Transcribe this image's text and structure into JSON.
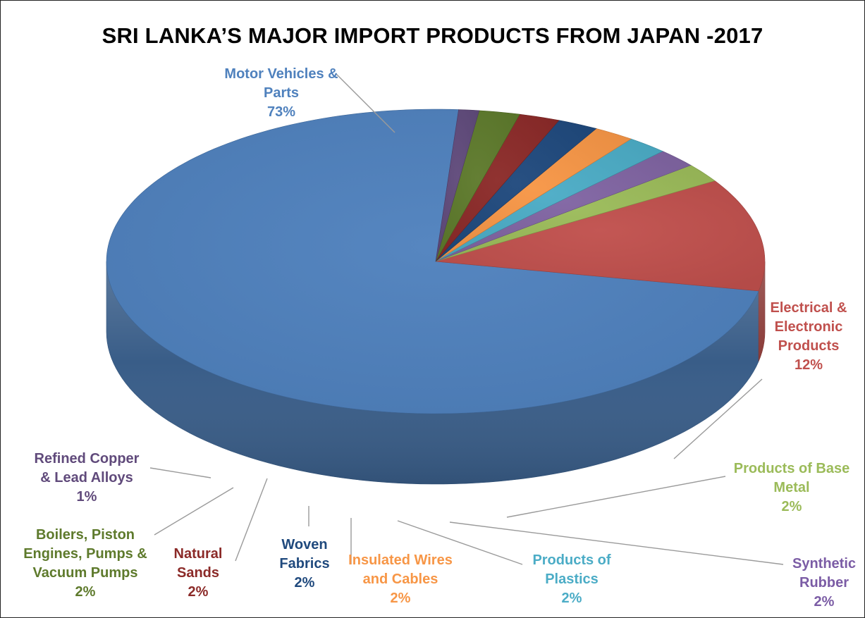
{
  "chart_data": {
    "type": "pie",
    "title": "SRI LANKA’S MAJOR IMPORT PRODUCTS FROM JAPAN -2017",
    "slices": [
      {
        "label": [
          "Motor Vehicles &",
          "Parts"
        ],
        "value_label": "73%",
        "value": 73,
        "color": "#4f81bd",
        "label_color": "#4f81bd"
      },
      {
        "label": [
          "Electrical &",
          "Electronic",
          "Products"
        ],
        "value_label": "12%",
        "value": 12,
        "color": "#c0504d",
        "label_color": "#c0504d"
      },
      {
        "label": [
          "Products of Base",
          "Metal"
        ],
        "value_label": "2%",
        "value": 2,
        "color": "#9bbb59",
        "label_color": "#9bbb59"
      },
      {
        "label": [
          "Synthetic",
          "Rubber"
        ],
        "value_label": "2%",
        "value": 2,
        "color": "#8064a2",
        "label_color": "#7b5ca5"
      },
      {
        "label": [
          "Products of",
          "Plastics"
        ],
        "value_label": "2%",
        "value": 2,
        "color": "#4bacc6",
        "label_color": "#4bacc6"
      },
      {
        "label": [
          "Insulated Wires",
          "and Cables"
        ],
        "value_label": "2%",
        "value": 2,
        "color": "#f79646",
        "label_color": "#f79646"
      },
      {
        "label": [
          "Woven",
          "Fabrics"
        ],
        "value_label": "2%",
        "value": 2,
        "color": "#1f497d",
        "label_color": "#1f497d"
      },
      {
        "label": [
          "Natural",
          "Sands"
        ],
        "value_label": "2%",
        "value": 2,
        "color": "#8b2a28",
        "label_color": "#8b2a28"
      },
      {
        "label": [
          "Boilers, Piston",
          "Engines, Pumps &",
          "Vacuum Pumps"
        ],
        "value_label": "2%",
        "value": 2,
        "color": "#5e7a2c",
        "label_color": "#5e7a2c"
      },
      {
        "label": [
          "Refined Copper",
          "& Lead Alloys"
        ],
        "value_label": "1%",
        "value": 1,
        "color": "#604a7b",
        "label_color": "#604a7b"
      }
    ]
  }
}
